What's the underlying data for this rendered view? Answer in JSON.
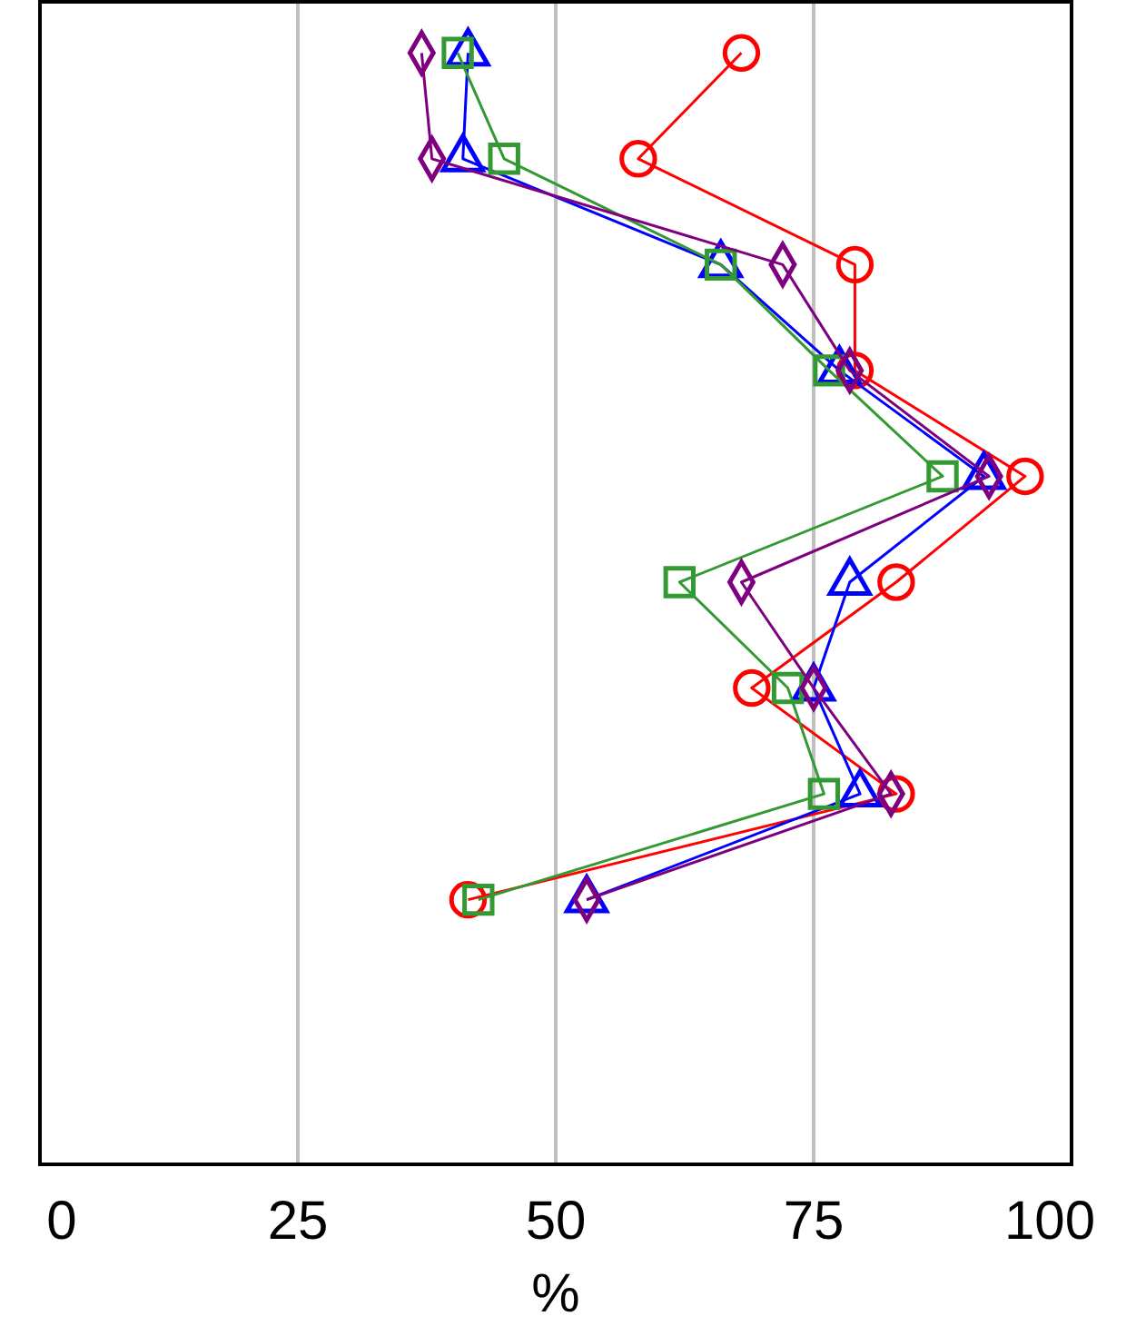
{
  "chart_data": {
    "type": "line",
    "orientation": "horizontal",
    "xlabel": "%",
    "xlim": [
      0,
      100
    ],
    "xticks": [
      0,
      25,
      50,
      75,
      100
    ],
    "grid": "x",
    "tick_labels": "x",
    "categories": [
      null,
      null,
      null,
      null,
      null,
      null,
      null,
      null,
      null,
      null,
      null
    ],
    "series": [
      {
        "color": "#ff0000",
        "marker": "circle",
        "values": [
          68,
          58,
          79,
          79,
          95.5,
          83,
          69,
          83,
          41.5,
          null,
          null
        ]
      },
      {
        "color": "#0000ff",
        "marker": "triangle",
        "values": [
          41.5,
          41,
          66,
          77.5,
          91.5,
          78.5,
          75,
          79.5,
          53,
          null,
          null
        ]
      },
      {
        "color": "#339933",
        "marker": "square",
        "values": [
          40.5,
          45,
          66,
          76.5,
          87.5,
          62,
          72.5,
          76,
          42.5,
          null,
          null
        ]
      },
      {
        "color": "#7f007f",
        "marker": "diamond",
        "values": [
          37,
          38,
          72,
          78.5,
          92,
          68,
          75,
          82.5,
          53,
          null,
          null
        ]
      }
    ]
  }
}
